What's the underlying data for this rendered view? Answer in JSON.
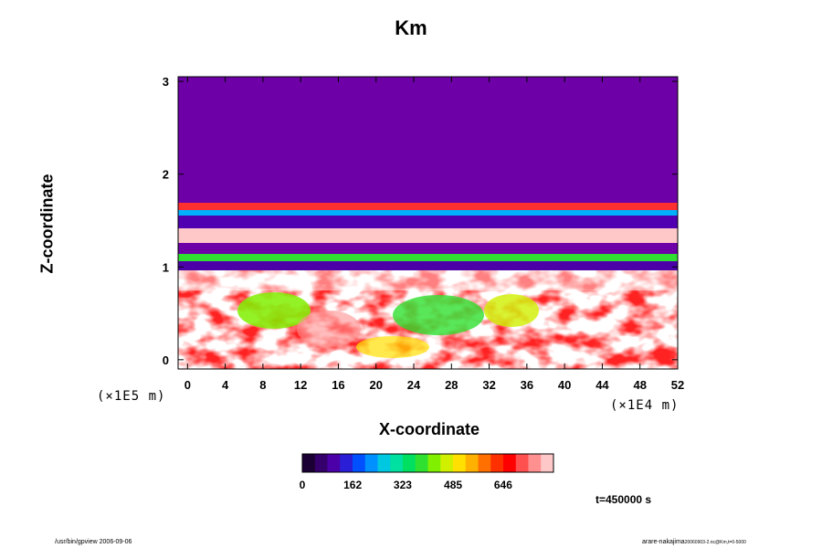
{
  "chart_data": {
    "type": "heatmap",
    "title": "Km",
    "xlabel": "X-coordinate",
    "ylabel": "Z-coordinate",
    "x_unit_label": "(×1E4 m)",
    "y_unit_label": "(×1E5 m)",
    "x_ticks": [
      "0",
      "4",
      "8",
      "12",
      "16",
      "20",
      "24",
      "28",
      "32",
      "36",
      "40",
      "44",
      "48",
      "52"
    ],
    "y_ticks": [
      "0",
      "1",
      "2",
      "3"
    ],
    "xlim": [
      -1,
      52
    ],
    "ylim": [
      -0.1,
      3.05
    ],
    "colorbar": {
      "ticks": [
        "0",
        "162",
        "323",
        "485",
        "646"
      ],
      "range": [
        0,
        808
      ],
      "colors": [
        "#1a0033",
        "#35006b",
        "#4b00a8",
        "#2a1fd6",
        "#0050ff",
        "#0090ff",
        "#00c8e0",
        "#00e0a0",
        "#00e060",
        "#30e030",
        "#80f000",
        "#d0f000",
        "#ffe000",
        "#ffb000",
        "#ff7000",
        "#ff3000",
        "#ff0000",
        "#ff5050",
        "#ff9090",
        "#ffc8c8"
      ]
    },
    "annotation": "t=450000 s",
    "footer_left": "/usr/bin/gpview 2006-09-06",
    "footer_right": "arare-nakajima",
    "footer_right_sub": "20060903-2.nc@Km,t=0-5000"
  }
}
